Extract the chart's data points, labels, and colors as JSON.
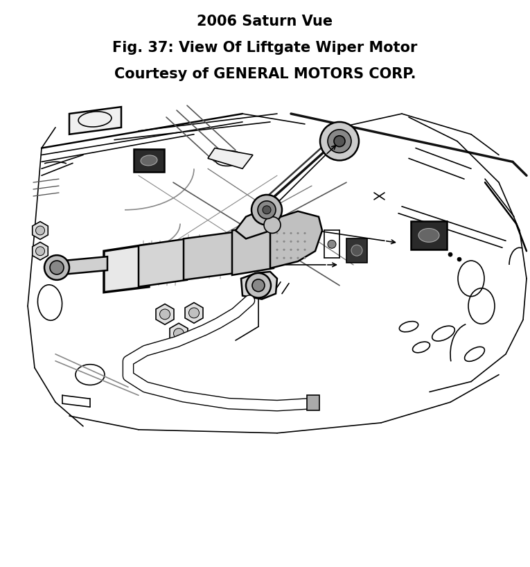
{
  "title_line1": "2006 Saturn Vue",
  "title_line2": "Fig. 37: View Of Liftgate Wiper Motor",
  "title_line3": "Courtesy of GENERAL MOTORS CORP.",
  "title_fontsize": 15,
  "title_fontweight": "bold",
  "background_color": "#ffffff",
  "line_color": "#000000",
  "fig_width": 7.65,
  "fig_height": 8.18,
  "dpi": 100
}
